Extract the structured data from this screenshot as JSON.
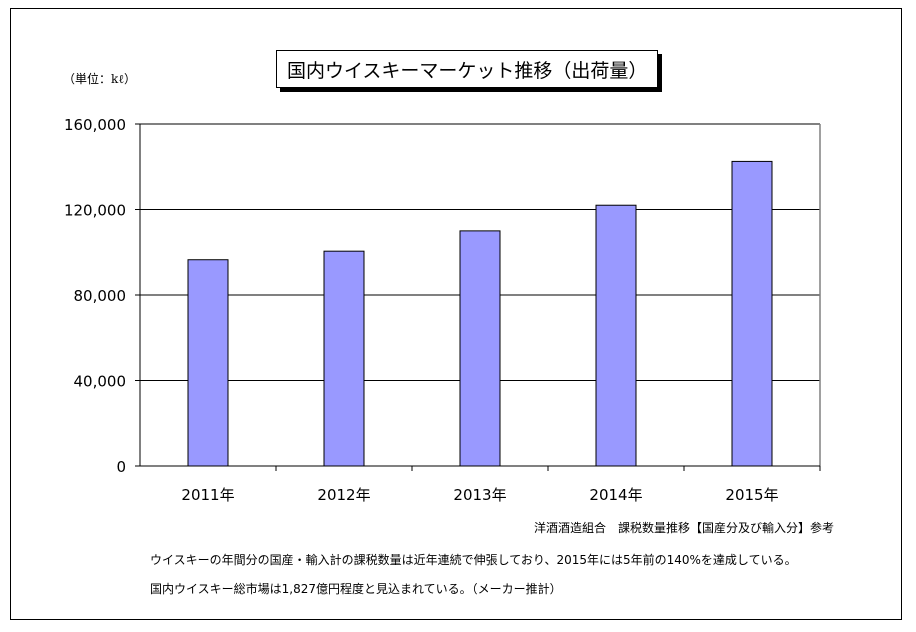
{
  "chart_data": {
    "type": "bar",
    "title": "国内ウイスキーマーケット推移（出荷量）",
    "unit_label": "（単位：kℓ）",
    "categories": [
      "2011年",
      "2012年",
      "2013年",
      "2014年",
      "2015年"
    ],
    "values": [
      96500,
      100500,
      110000,
      122000,
      142500
    ],
    "ylim": [
      0,
      160000
    ],
    "yticks": [
      0,
      40000,
      80000,
      120000,
      160000
    ],
    "ytick_labels": [
      "0",
      "40,000",
      "80,000",
      "120,000",
      "160,000"
    ],
    "grid": true,
    "bar_color": "#9999ff"
  },
  "source": "洋酒酒造組合　課税数量推移【国産分及び輸入分】参考",
  "notes": [
    "ウイスキーの年間分の国産・輸入計の課税数量は近年連続で伸張しており、2015年には5年前の140%を達成している。",
    "国内ウイスキー総市場は1,827億円程度と見込まれている。（メーカー推計）"
  ]
}
